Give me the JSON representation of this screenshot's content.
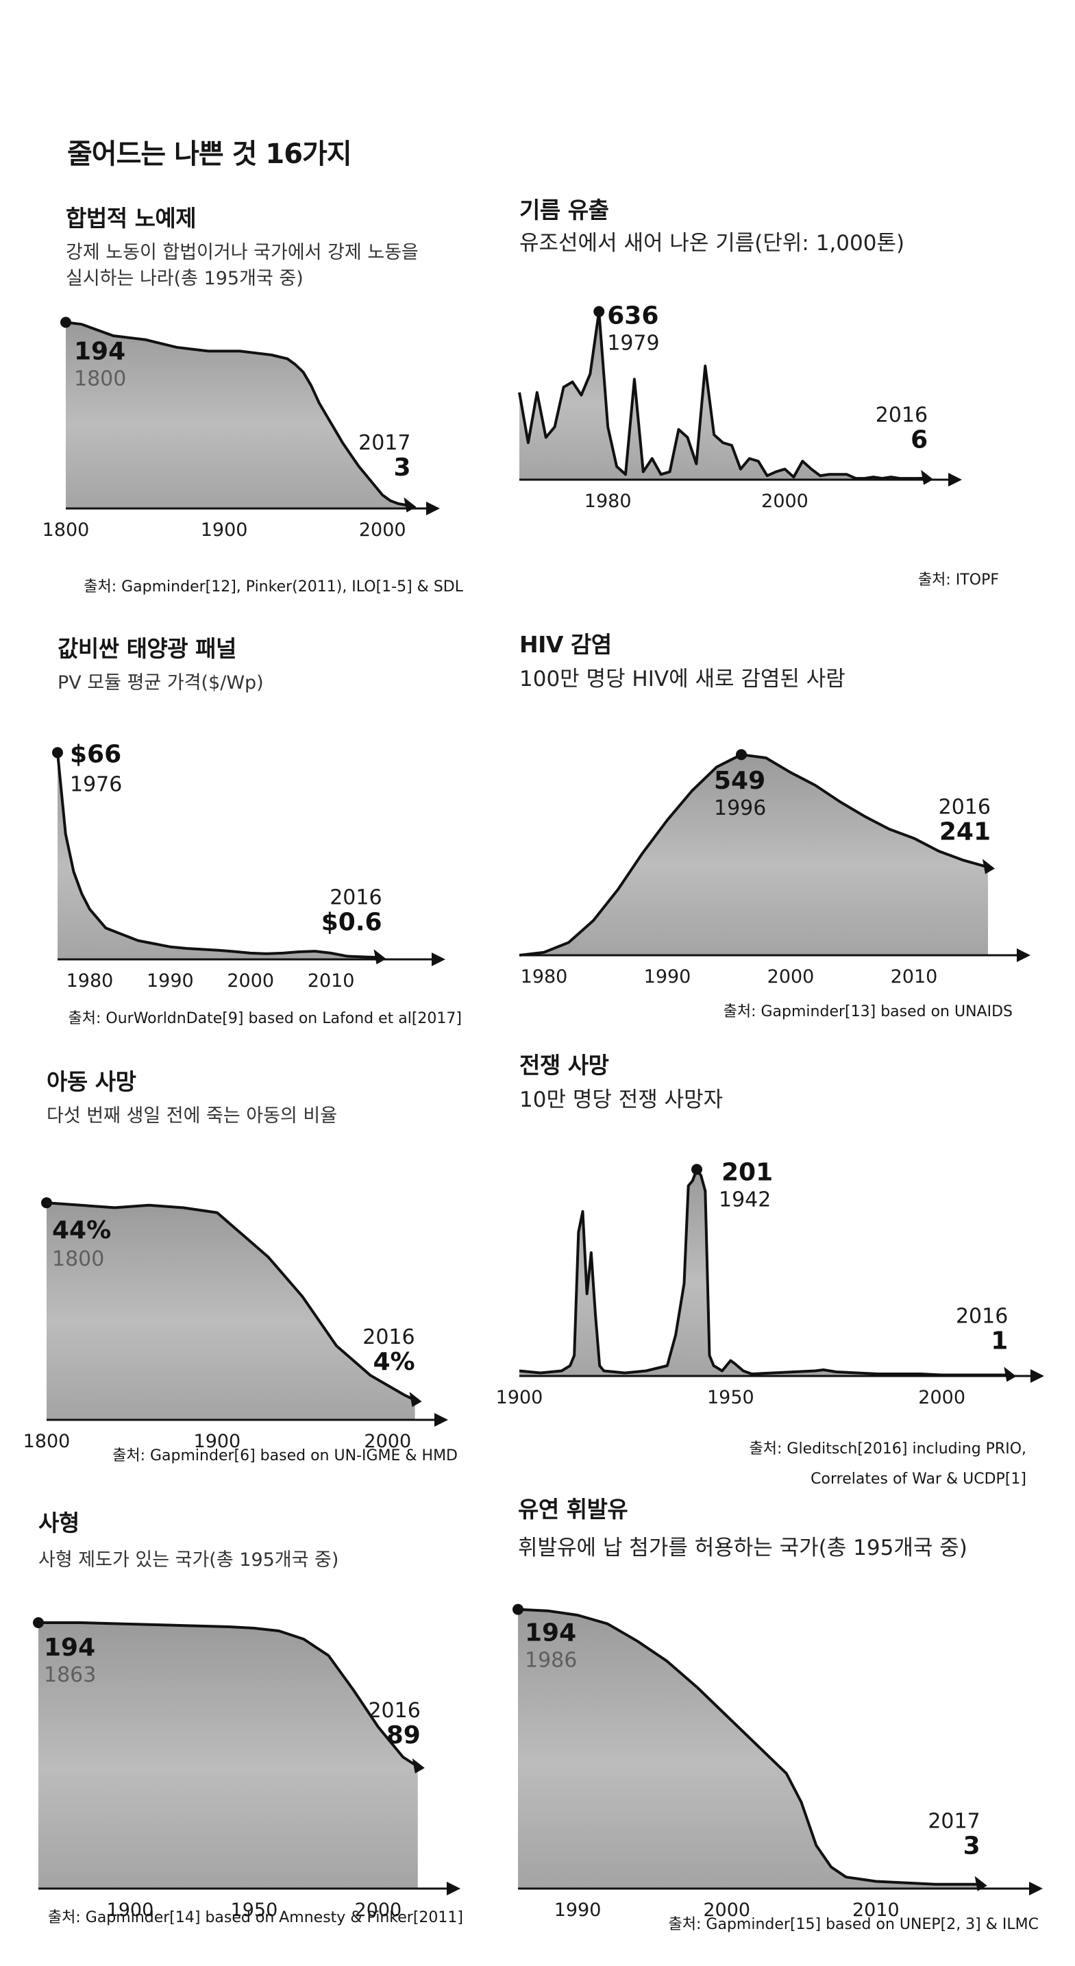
{
  "page_title": "줄어드는 나쁜 것 16가지",
  "chart_data": [
    {
      "type": "area",
      "title": "합법적 노예제",
      "subtitle": [
        "강제 노동이 합법이거나 국가에서 강제 노동을",
        "실시하는 나라(총 195개국 중)"
      ],
      "source": [
        "출처: Gapminder[12], Pinker(2011), ILO[1-5] & SDL"
      ],
      "x": [
        1800,
        1810,
        1820,
        1830,
        1840,
        1850,
        1860,
        1870,
        1880,
        1890,
        1900,
        1910,
        1920,
        1930,
        1940,
        1945,
        1950,
        1955,
        1960,
        1965,
        1970,
        1975,
        1980,
        1985,
        1990,
        1995,
        2000,
        2005,
        2010,
        2017
      ],
      "y": [
        194,
        192,
        186,
        180,
        178,
        176,
        172,
        168,
        166,
        164,
        164,
        164,
        162,
        160,
        156,
        150,
        142,
        128,
        110,
        96,
        82,
        68,
        56,
        44,
        34,
        24,
        14,
        8,
        5,
        3
      ],
      "xlim": [
        1800,
        2025
      ],
      "ylim": [
        0,
        200
      ],
      "xticks": [
        1800,
        1900,
        2000
      ],
      "labels": {
        "start_value": "194",
        "start_year": "1800",
        "end_value": "3",
        "end_year": "2017"
      }
    },
    {
      "type": "area",
      "title": "기름 유출",
      "subtitle": [
        "유조선에서 새어 나온 기름(단위: 1,000톤)"
      ],
      "source": [
        "출처: ITOPF"
      ],
      "x": [
        1970,
        1971,
        1972,
        1973,
        1974,
        1975,
        1976,
        1977,
        1978,
        1979,
        1980,
        1981,
        1982,
        1983,
        1984,
        1985,
        1986,
        1987,
        1988,
        1989,
        1990,
        1991,
        1992,
        1993,
        1994,
        1995,
        1996,
        1997,
        1998,
        1999,
        2000,
        2001,
        2002,
        2003,
        2004,
        2005,
        2006,
        2007,
        2008,
        2009,
        2010,
        2011,
        2012,
        2013,
        2014,
        2015,
        2016
      ],
      "y": [
        330,
        140,
        330,
        160,
        200,
        350,
        370,
        320,
        400,
        636,
        200,
        50,
        20,
        380,
        30,
        80,
        20,
        30,
        190,
        160,
        60,
        430,
        170,
        140,
        130,
        40,
        80,
        70,
        15,
        30,
        40,
        10,
        70,
        40,
        15,
        20,
        20,
        20,
        5,
        5,
        10,
        5,
        10,
        5,
        5,
        5,
        6
      ],
      "xlim": [
        1970,
        2018
      ],
      "ylim": [
        0,
        700
      ],
      "xticks": [
        1980,
        2000
      ],
      "labels": {
        "peak_value": "636",
        "peak_year": "1979",
        "end_value": "6",
        "end_year": "2016"
      }
    },
    {
      "type": "area",
      "title": "값비싼 태양광 패널",
      "subtitle": [
        "PV 모듈 평균 가격($/Wp)"
      ],
      "source": [
        "출처: OurWorldnDate[9] based on Lafond et al[2017]"
      ],
      "x": [
        1976,
        1977,
        1978,
        1979,
        1980,
        1981,
        1982,
        1983,
        1984,
        1985,
        1986,
        1987,
        1988,
        1989,
        1990,
        1992,
        1994,
        1996,
        1998,
        2000,
        2002,
        2004,
        2006,
        2008,
        2010,
        2012,
        2014,
        2016
      ],
      "y": [
        66,
        40,
        28,
        21,
        16,
        13,
        10,
        9,
        8,
        7,
        6,
        5.5,
        5,
        4.5,
        4,
        3.5,
        3.2,
        2.9,
        2.5,
        2,
        1.8,
        2,
        2.4,
        2.6,
        2,
        1,
        0.8,
        0.6
      ],
      "xlim": [
        1976,
        2022
      ],
      "ylim": [
        0,
        70
      ],
      "xticks": [
        1980,
        1990,
        2000,
        2010
      ],
      "labels": {
        "peak_value": "$66",
        "peak_year": "1976",
        "end_value": "$0.6",
        "end_year": "2016"
      }
    },
    {
      "type": "area",
      "title": "HIV 감염",
      "subtitle": [
        "100만 명당 HIV에 새로 감염된 사람"
      ],
      "source": [
        "출처: Gapminder[13] based on UNAIDS"
      ],
      "x": [
        1978,
        1980,
        1982,
        1984,
        1986,
        1988,
        1990,
        1992,
        1994,
        1996,
        1998,
        2000,
        2002,
        2004,
        2006,
        2008,
        2010,
        2012,
        2014,
        2016
      ],
      "y": [
        0,
        8,
        35,
        95,
        180,
        280,
        370,
        450,
        515,
        549,
        540,
        500,
        465,
        420,
        380,
        345,
        320,
        285,
        260,
        241
      ],
      "xlim": [
        1978,
        2018
      ],
      "ylim": [
        0,
        600
      ],
      "xticks": [
        1980,
        1990,
        2000,
        2010
      ],
      "labels": {
        "peak_value": "549",
        "peak_year": "1996",
        "end_value": "241",
        "end_year": "2016"
      }
    },
    {
      "type": "area",
      "title": "아동 사망",
      "subtitle": [
        "다섯 번째 생일 전에 죽는 아동의 비율"
      ],
      "source": [
        "출처: Gapminder[6] based on UN-IGME & HMD"
      ],
      "x": [
        1800,
        1820,
        1840,
        1860,
        1880,
        1900,
        1910,
        1920,
        1930,
        1940,
        1950,
        1960,
        1970,
        1980,
        1990,
        2000,
        2010,
        2016
      ],
      "y": [
        44,
        43.5,
        43,
        43.5,
        43,
        42,
        39,
        36,
        33,
        29,
        25,
        20,
        15,
        12,
        9,
        7,
        5,
        4
      ],
      "xlim": [
        1800,
        2025
      ],
      "ylim": [
        0,
        50
      ],
      "xticks": [
        1800,
        1900,
        2000
      ],
      "labels": {
        "start_value": "44%",
        "start_year": "1800",
        "end_value": "4%",
        "end_year": "2016"
      }
    },
    {
      "type": "area",
      "title": "전쟁 사망",
      "subtitle": [
        "10만 명당 전쟁 사망자"
      ],
      "source": [
        "출처: Gleditsch[2016] including PRIO,",
        "Correlates of War & UCDP[1]"
      ],
      "x": [
        1900,
        1905,
        1910,
        1912,
        1913,
        1914,
        1915,
        1916,
        1917,
        1918,
        1919,
        1920,
        1925,
        1930,
        1935,
        1937,
        1939,
        1940,
        1941,
        1942,
        1943,
        1944,
        1945,
        1946,
        1948,
        1950,
        1951,
        1953,
        1955,
        1960,
        1965,
        1970,
        1972,
        1975,
        1980,
        1985,
        1990,
        1995,
        2000,
        2005,
        2010,
        2016
      ],
      "y": [
        5,
        3,
        5,
        10,
        20,
        140,
        160,
        80,
        120,
        60,
        10,
        5,
        3,
        5,
        10,
        40,
        90,
        185,
        190,
        201,
        195,
        180,
        20,
        10,
        5,
        15,
        12,
        5,
        2,
        3,
        4,
        5,
        6,
        4,
        3,
        2,
        2,
        2,
        1,
        1,
        1,
        1
      ],
      "xlim": [
        1900,
        2020
      ],
      "ylim": [
        0,
        220
      ],
      "xticks": [
        1900,
        1950,
        2000
      ],
      "labels": {
        "peak_value": "201",
        "peak_year": "1942",
        "end_value": "1",
        "end_year": "2016"
      }
    },
    {
      "type": "area",
      "title": "사형",
      "subtitle": [
        "사형 제도가 있는 국가(총 195개국 중)"
      ],
      "source": [
        "출처: Gapminder[14] based on Amnesty & Pinker[2011]"
      ],
      "x": [
        1863,
        1880,
        1900,
        1920,
        1940,
        1950,
        1960,
        1970,
        1980,
        1990,
        2000,
        2010,
        2016
      ],
      "y": [
        194,
        194,
        193,
        192,
        191,
        190,
        188,
        182,
        170,
        145,
        118,
        96,
        89
      ],
      "xlim": [
        1863,
        2026
      ],
      "ylim": [
        0,
        200
      ],
      "xticks": [
        1900,
        1950,
        2000
      ],
      "labels": {
        "start_value": "194",
        "start_year": "1863",
        "end_value": "89",
        "end_year": "2016"
      }
    },
    {
      "type": "area",
      "title": "유연 휘발유",
      "subtitle": [
        "휘발유에 납 첨가를 허용하는 국가(총 195개국 중)"
      ],
      "source": [
        "출처: Gapminder[15] based on UNEP[2, 3] & ILMC"
      ],
      "x": [
        1986,
        1988,
        1990,
        1992,
        1994,
        1996,
        1998,
        2000,
        2002,
        2004,
        2005,
        2006,
        2007,
        2008,
        2010,
        2012,
        2014,
        2017
      ],
      "y": [
        194,
        193,
        190,
        184,
        172,
        158,
        140,
        120,
        100,
        80,
        60,
        30,
        15,
        8,
        5,
        4,
        3,
        3
      ],
      "xlim": [
        1986,
        2020
      ],
      "ylim": [
        0,
        200
      ],
      "xticks": [
        1990,
        2000,
        2010
      ],
      "labels": {
        "start_value": "194",
        "start_year": "1986",
        "end_value": "3",
        "end_year": "2017"
      }
    }
  ]
}
